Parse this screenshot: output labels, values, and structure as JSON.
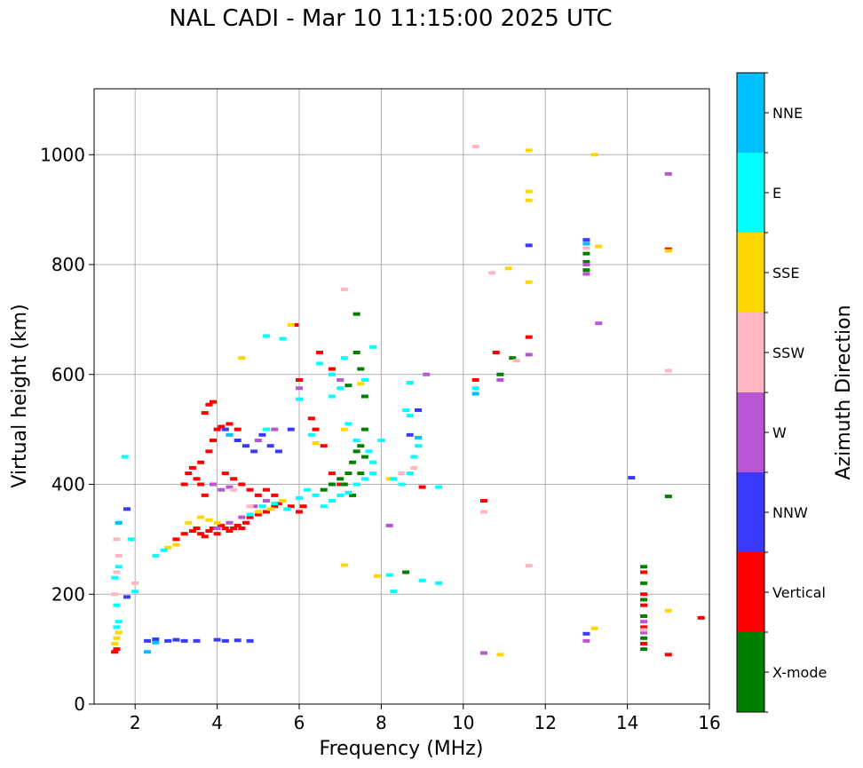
{
  "chart_data": {
    "type": "scatter",
    "title": "NAL CADI - Mar 10 11:15:00 2025 UTC",
    "xlabel": "Frequency (MHz)",
    "ylabel": "Virtual height (km)",
    "xlim": [
      1,
      16
    ],
    "ylim": [
      0,
      1120
    ],
    "xticks": [
      2,
      4,
      6,
      8,
      10,
      12,
      14,
      16
    ],
    "yticks": [
      0,
      200,
      400,
      600,
      800,
      1000
    ],
    "grid": true,
    "colorbar": {
      "label": "Azimuth Direction",
      "categories": [
        {
          "name": "X-mode",
          "color": "#008000"
        },
        {
          "name": "Vertical",
          "color": "#ff0000"
        },
        {
          "name": "NNW",
          "color": "#3a3aff"
        },
        {
          "name": "W",
          "color": "#b955d3"
        },
        {
          "name": "SSW",
          "color": "#ffb6c1"
        },
        {
          "name": "SSE",
          "color": "#ffd700"
        },
        {
          "name": "E",
          "color": "#00ffff"
        },
        {
          "name": "NNE",
          "color": "#00bfff"
        }
      ]
    },
    "series": [
      {
        "name": "Vertical",
        "points": [
          [
            1.5,
            95
          ],
          [
            1.55,
            100
          ],
          [
            3.0,
            300
          ],
          [
            3.2,
            310
          ],
          [
            3.4,
            315
          ],
          [
            3.5,
            320
          ],
          [
            3.6,
            310
          ],
          [
            3.7,
            305
          ],
          [
            3.8,
            315
          ],
          [
            3.9,
            320
          ],
          [
            4.0,
            310
          ],
          [
            4.1,
            325
          ],
          [
            4.2,
            320
          ],
          [
            4.3,
            315
          ],
          [
            4.4,
            320
          ],
          [
            4.5,
            325
          ],
          [
            4.6,
            320
          ],
          [
            4.7,
            330
          ],
          [
            4.8,
            340
          ],
          [
            5.0,
            345
          ],
          [
            5.2,
            350
          ],
          [
            5.4,
            360
          ],
          [
            5.5,
            365
          ],
          [
            3.2,
            400
          ],
          [
            3.3,
            420
          ],
          [
            3.4,
            430
          ],
          [
            3.5,
            410
          ],
          [
            3.6,
            440
          ],
          [
            3.6,
            400
          ],
          [
            3.7,
            380
          ],
          [
            3.8,
            460
          ],
          [
            3.9,
            480
          ],
          [
            4.0,
            500
          ],
          [
            4.1,
            505
          ],
          [
            4.3,
            510
          ],
          [
            4.5,
            500
          ],
          [
            3.7,
            530
          ],
          [
            3.8,
            545
          ],
          [
            3.9,
            550
          ],
          [
            4.2,
            420
          ],
          [
            4.4,
            410
          ],
          [
            4.6,
            400
          ],
          [
            4.8,
            390
          ],
          [
            5.0,
            380
          ],
          [
            5.2,
            390
          ],
          [
            5.4,
            380
          ],
          [
            5.6,
            370
          ],
          [
            5.8,
            360
          ],
          [
            6.0,
            350
          ],
          [
            6.1,
            360
          ],
          [
            6.3,
            520
          ],
          [
            6.4,
            500
          ],
          [
            6.6,
            470
          ],
          [
            6.8,
            420
          ],
          [
            7.0,
            400
          ],
          [
            6.5,
            640
          ],
          [
            6.8,
            610
          ],
          [
            6.0,
            590
          ],
          [
            5.9,
            690
          ],
          [
            9.0,
            395
          ],
          [
            10.3,
            590
          ],
          [
            10.5,
            370
          ],
          [
            10.8,
            640
          ],
          [
            15.0,
            828
          ],
          [
            15.0,
            90
          ],
          [
            15.8,
            157
          ],
          [
            14.4,
            110
          ],
          [
            14.4,
            140
          ],
          [
            14.4,
            180
          ],
          [
            14.4,
            200
          ],
          [
            14.4,
            240
          ],
          [
            11.6,
            668
          ]
        ]
      },
      {
        "name": "X-mode",
        "points": [
          [
            14.4,
            100
          ],
          [
            14.4,
            120
          ],
          [
            14.4,
            160
          ],
          [
            14.4,
            190
          ],
          [
            14.4,
            220
          ],
          [
            14.4,
            250
          ],
          [
            6.6,
            390
          ],
          [
            6.8,
            400
          ],
          [
            7.0,
            410
          ],
          [
            7.2,
            420
          ],
          [
            7.3,
            440
          ],
          [
            7.4,
            460
          ],
          [
            7.5,
            470
          ],
          [
            7.6,
            500
          ],
          [
            7.6,
            560
          ],
          [
            7.5,
            610
          ],
          [
            7.4,
            640
          ],
          [
            7.4,
            710
          ],
          [
            7.1,
            400
          ],
          [
            7.3,
            380
          ],
          [
            7.5,
            420
          ],
          [
            7.6,
            450
          ],
          [
            7.2,
            580
          ],
          [
            8.6,
            240
          ],
          [
            10.9,
            600
          ],
          [
            11.2,
            630
          ],
          [
            13.0,
            805
          ],
          [
            13.0,
            820
          ],
          [
            15.0,
            378
          ],
          [
            13.0,
            790
          ]
        ]
      },
      {
        "name": "NNW",
        "points": [
          [
            2.3,
            115
          ],
          [
            2.5,
            118
          ],
          [
            2.8,
            115
          ],
          [
            3.0,
            117
          ],
          [
            3.2,
            115
          ],
          [
            3.5,
            115
          ],
          [
            4.0,
            117
          ],
          [
            4.2,
            115
          ],
          [
            4.5,
            116
          ],
          [
            4.8,
            115
          ],
          [
            4.2,
            500
          ],
          [
            4.5,
            480
          ],
          [
            4.7,
            470
          ],
          [
            4.9,
            460
          ],
          [
            5.1,
            490
          ],
          [
            5.3,
            470
          ],
          [
            5.5,
            460
          ],
          [
            5.8,
            500
          ],
          [
            8.7,
            490
          ],
          [
            8.9,
            535
          ],
          [
            13.0,
            845
          ],
          [
            11.6,
            835
          ],
          [
            13.0,
            128
          ],
          [
            14.1,
            412
          ],
          [
            1.8,
            355
          ],
          [
            1.8,
            195
          ]
        ]
      },
      {
        "name": "W",
        "points": [
          [
            4.0,
            320
          ],
          [
            4.3,
            330
          ],
          [
            4.6,
            340
          ],
          [
            4.9,
            360
          ],
          [
            5.2,
            370
          ],
          [
            5.6,
            370
          ],
          [
            3.9,
            400
          ],
          [
            4.1,
            390
          ],
          [
            4.3,
            395
          ],
          [
            5.0,
            480
          ],
          [
            5.4,
            500
          ],
          [
            6.0,
            575
          ],
          [
            7.0,
            590
          ],
          [
            8.2,
            325
          ],
          [
            9.1,
            600
          ],
          [
            10.9,
            590
          ],
          [
            11.6,
            636
          ],
          [
            13.3,
            693
          ],
          [
            13.0,
            783
          ],
          [
            13.0,
            800
          ],
          [
            15.0,
            965
          ],
          [
            13.0,
            115
          ],
          [
            14.4,
            130
          ],
          [
            14.4,
            150
          ],
          [
            10.5,
            93
          ]
        ]
      },
      {
        "name": "SSW",
        "points": [
          [
            1.55,
            300
          ],
          [
            1.6,
            270
          ],
          [
            1.55,
            240
          ],
          [
            1.5,
            200
          ],
          [
            2.0,
            220
          ],
          [
            4.4,
            390
          ],
          [
            4.8,
            360
          ],
          [
            8.0,
            480
          ],
          [
            8.5,
            420
          ],
          [
            8.8,
            430
          ],
          [
            10.3,
            1015
          ],
          [
            10.7,
            785
          ],
          [
            11.3,
            625
          ],
          [
            13.0,
            830
          ],
          [
            15.0,
            607
          ],
          [
            11.6,
            252
          ],
          [
            14.4,
            135
          ],
          [
            10.5,
            350
          ],
          [
            7.1,
            755
          ]
        ]
      },
      {
        "name": "SSE",
        "points": [
          [
            1.55,
            120
          ],
          [
            1.6,
            130
          ],
          [
            1.5,
            110
          ],
          [
            2.8,
            285
          ],
          [
            3.0,
            290
          ],
          [
            3.3,
            330
          ],
          [
            3.6,
            340
          ],
          [
            3.8,
            335
          ],
          [
            4.0,
            330
          ],
          [
            5.0,
            350
          ],
          [
            5.3,
            355
          ],
          [
            5.6,
            370
          ],
          [
            5.8,
            690
          ],
          [
            4.6,
            630
          ],
          [
            7.1,
            500
          ],
          [
            8.2,
            410
          ],
          [
            7.1,
            253
          ],
          [
            7.9,
            233
          ],
          [
            11.6,
            1008
          ],
          [
            11.6,
            933
          ],
          [
            11.6,
            917
          ],
          [
            11.6,
            768
          ],
          [
            11.1,
            793
          ],
          [
            13.2,
            1000
          ],
          [
            13.3,
            833
          ],
          [
            13.2,
            138
          ],
          [
            15.0,
            825
          ],
          [
            15.0,
            170
          ],
          [
            10.9,
            90
          ],
          [
            7.5,
            583
          ],
          [
            6.4,
            475
          ]
        ]
      },
      {
        "name": "E",
        "points": [
          [
            1.55,
            180
          ],
          [
            1.6,
            150
          ],
          [
            1.6,
            250
          ],
          [
            1.6,
            330
          ],
          [
            1.75,
            450
          ],
          [
            1.9,
            300
          ],
          [
            2.0,
            205
          ],
          [
            2.5,
            270
          ],
          [
            2.7,
            280
          ],
          [
            4.8,
            345
          ],
          [
            5.1,
            360
          ],
          [
            5.4,
            365
          ],
          [
            5.7,
            355
          ],
          [
            6.0,
            375
          ],
          [
            6.2,
            390
          ],
          [
            6.4,
            380
          ],
          [
            6.6,
            360
          ],
          [
            6.8,
            370
          ],
          [
            7.0,
            380
          ],
          [
            7.2,
            385
          ],
          [
            7.4,
            400
          ],
          [
            7.6,
            410
          ],
          [
            7.8,
            420
          ],
          [
            7.8,
            440
          ],
          [
            7.7,
            460
          ],
          [
            7.4,
            480
          ],
          [
            7.2,
            510
          ],
          [
            6.8,
            560
          ],
          [
            6.8,
            600
          ],
          [
            6.5,
            620
          ],
          [
            7.0,
            575
          ],
          [
            7.8,
            650
          ],
          [
            7.6,
            590
          ],
          [
            8.0,
            480
          ],
          [
            8.3,
            410
          ],
          [
            8.5,
            400
          ],
          [
            8.7,
            420
          ],
          [
            8.8,
            450
          ],
          [
            8.9,
            470
          ],
          [
            8.6,
            535
          ],
          [
            8.7,
            585
          ],
          [
            8.7,
            525
          ],
          [
            8.2,
            235
          ],
          [
            8.3,
            205
          ],
          [
            9.0,
            225
          ],
          [
            9.4,
            220
          ],
          [
            9.4,
            395
          ],
          [
            10.3,
            575
          ],
          [
            5.2,
            670
          ],
          [
            5.6,
            665
          ],
          [
            6.0,
            555
          ],
          [
            6.3,
            490
          ],
          [
            5.2,
            500
          ],
          [
            7.1,
            630
          ],
          [
            1.5,
            230
          ],
          [
            1.55,
            140
          ]
        ]
      },
      {
        "name": "NNE",
        "points": [
          [
            2.3,
            95
          ],
          [
            2.5,
            112
          ],
          [
            1.6,
            330
          ],
          [
            4.3,
            490
          ],
          [
            8.9,
            485
          ],
          [
            10.3,
            565
          ],
          [
            13.0,
            838
          ]
        ]
      }
    ]
  }
}
